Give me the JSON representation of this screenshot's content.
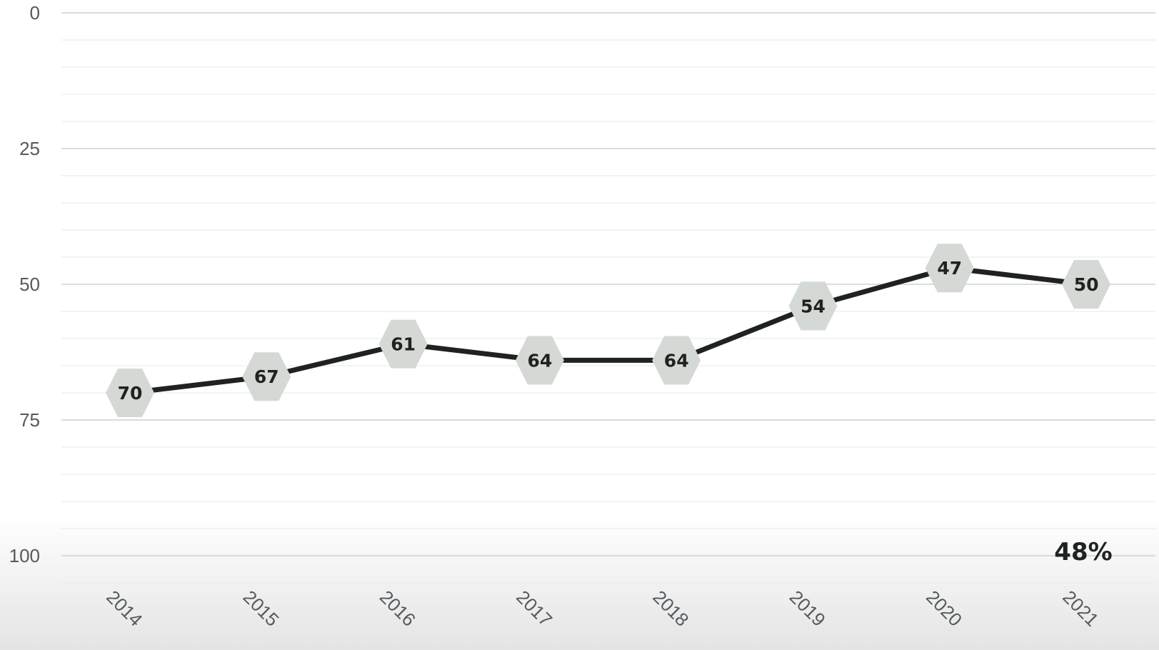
{
  "chart_data": {
    "type": "line",
    "title": "",
    "xlabel": "",
    "ylabel": "",
    "y_reversed": true,
    "ylim": [
      0,
      100
    ],
    "y_ticks": [
      0,
      25,
      50,
      75,
      100
    ],
    "y_tick_labels": [
      "0",
      "25",
      "50",
      "75",
      "100"
    ],
    "y_minor_step": 5,
    "grid": true,
    "legend": "none",
    "categories": [
      "2014",
      "2015",
      "2016",
      "2017",
      "2018",
      "2019",
      "2020",
      "2021"
    ],
    "series": [
      {
        "values": [
          70,
          67,
          61,
          64,
          64,
          54,
          47,
          50
        ],
        "data_labels": [
          "70",
          "67",
          "61",
          "64",
          "64",
          "54",
          "47",
          "50"
        ],
        "line_color": "#1e2320",
        "marker": "hexagon",
        "marker_color": "#d5d9d6"
      }
    ],
    "annotation": "48%"
  },
  "colors": {
    "grid_major": "#d0d0d0",
    "grid_minor": "#ececec",
    "background_bottom": "#e4e4e4"
  }
}
